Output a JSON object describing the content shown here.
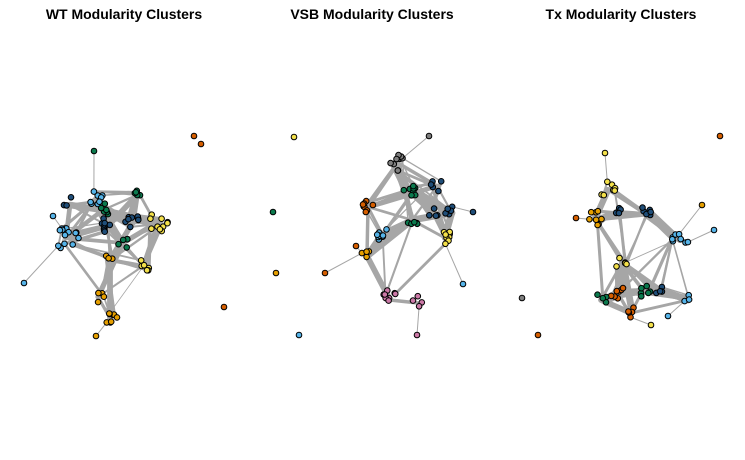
{
  "panels": [
    {
      "title": "WT Modularity Clusters"
    },
    {
      "title": "VSB Modularity Clusters"
    },
    {
      "title": "Tx Modularity Clusters"
    }
  ],
  "cluster_colors": {
    "blue": "#56B4E9",
    "darkblue": "#1F4E79",
    "green": "#0B7A4E",
    "yellow": "#F3E04A",
    "orange": "#E69F00",
    "red": "#D55E00",
    "pink": "#CC79A7",
    "gray": "#7F7F7F"
  },
  "edge_color": "#A6A6A6"
}
